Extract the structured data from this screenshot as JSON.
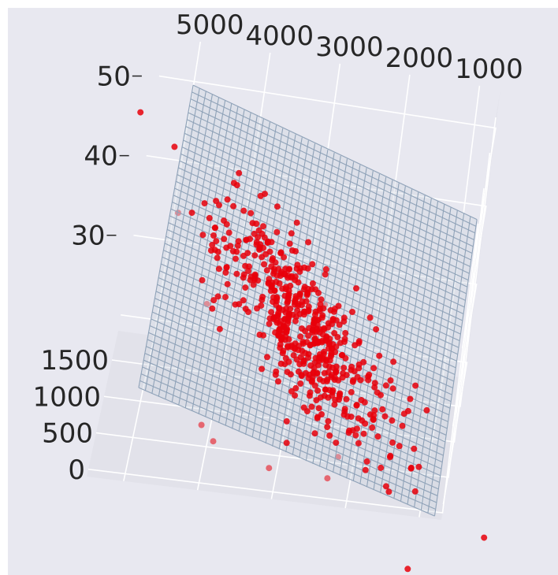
{
  "chart_data": {
    "type": "scatter",
    "subtype": "3d-scatter-with-regression-plane",
    "title": "",
    "xlabel": "",
    "ylabel": "",
    "zlabel": "",
    "grid": true,
    "style": "seaborn-darkgrid",
    "colors": {
      "pane": "#e8e8f0",
      "grid": "#ffffff",
      "points": "#e8000b",
      "plane_line": "#8fa2b8",
      "tick_text": "#262626"
    },
    "x_axis": {
      "ticks": [
        "5000",
        "4000",
        "3000",
        "2000",
        "1000"
      ],
      "range": [
        5500,
        700
      ]
    },
    "y_axis": {
      "ticks": [
        "1500",
        "1000",
        "500",
        "0"
      ],
      "range": [
        1900,
        -100
      ]
    },
    "z_axis": {
      "ticks": [
        "50",
        "40",
        "30"
      ],
      "range": [
        18,
        55
      ]
    },
    "plane": {
      "z_at_x_high_y_high": 53,
      "z_at_x_low_y_high": 40,
      "z_at_x_high_y_low": 29,
      "z_at_x_low_y_low": 16
    },
    "series": [
      {
        "marker": "circle",
        "cluster": {
          "x_center": 2950,
          "y_center": 640,
          "x_spread": 700,
          "y_spread": 300,
          "z_center": 31,
          "z_spread": 3.5,
          "count": 560
        },
        "points": [
          {
            "x": 4900,
            "y": 1200,
            "z": 40
          },
          {
            "x": 2200,
            "y": 150,
            "z": 22
          },
          {
            "x": 4100,
            "y": 350,
            "z": 22
          },
          {
            "x": 3900,
            "y": 150,
            "z": 22
          },
          {
            "x": 3100,
            "y": 100,
            "z": 20
          },
          {
            "x": 2300,
            "y": 60,
            "z": 20
          },
          {
            "x": 1500,
            "y": 50,
            "z": 20
          },
          {
            "x": 1200,
            "y": 120,
            "z": 22
          },
          {
            "x": 2400,
            "y": 700,
            "z": 28
          },
          {
            "x": 2000,
            "y": 620,
            "z": 28
          },
          {
            "x": 3300,
            "y": 1100,
            "z": 36
          },
          {
            "x": 3700,
            "y": 1050,
            "z": 35
          },
          {
            "x": 2700,
            "y": 1000,
            "z": 33
          },
          {
            "x": 4300,
            "y": 900,
            "z": 32
          },
          {
            "x": 1300,
            "y": 500,
            "z": 29
          },
          {
            "x": 1100,
            "y": 400,
            "z": 27
          }
        ]
      }
    ]
  }
}
